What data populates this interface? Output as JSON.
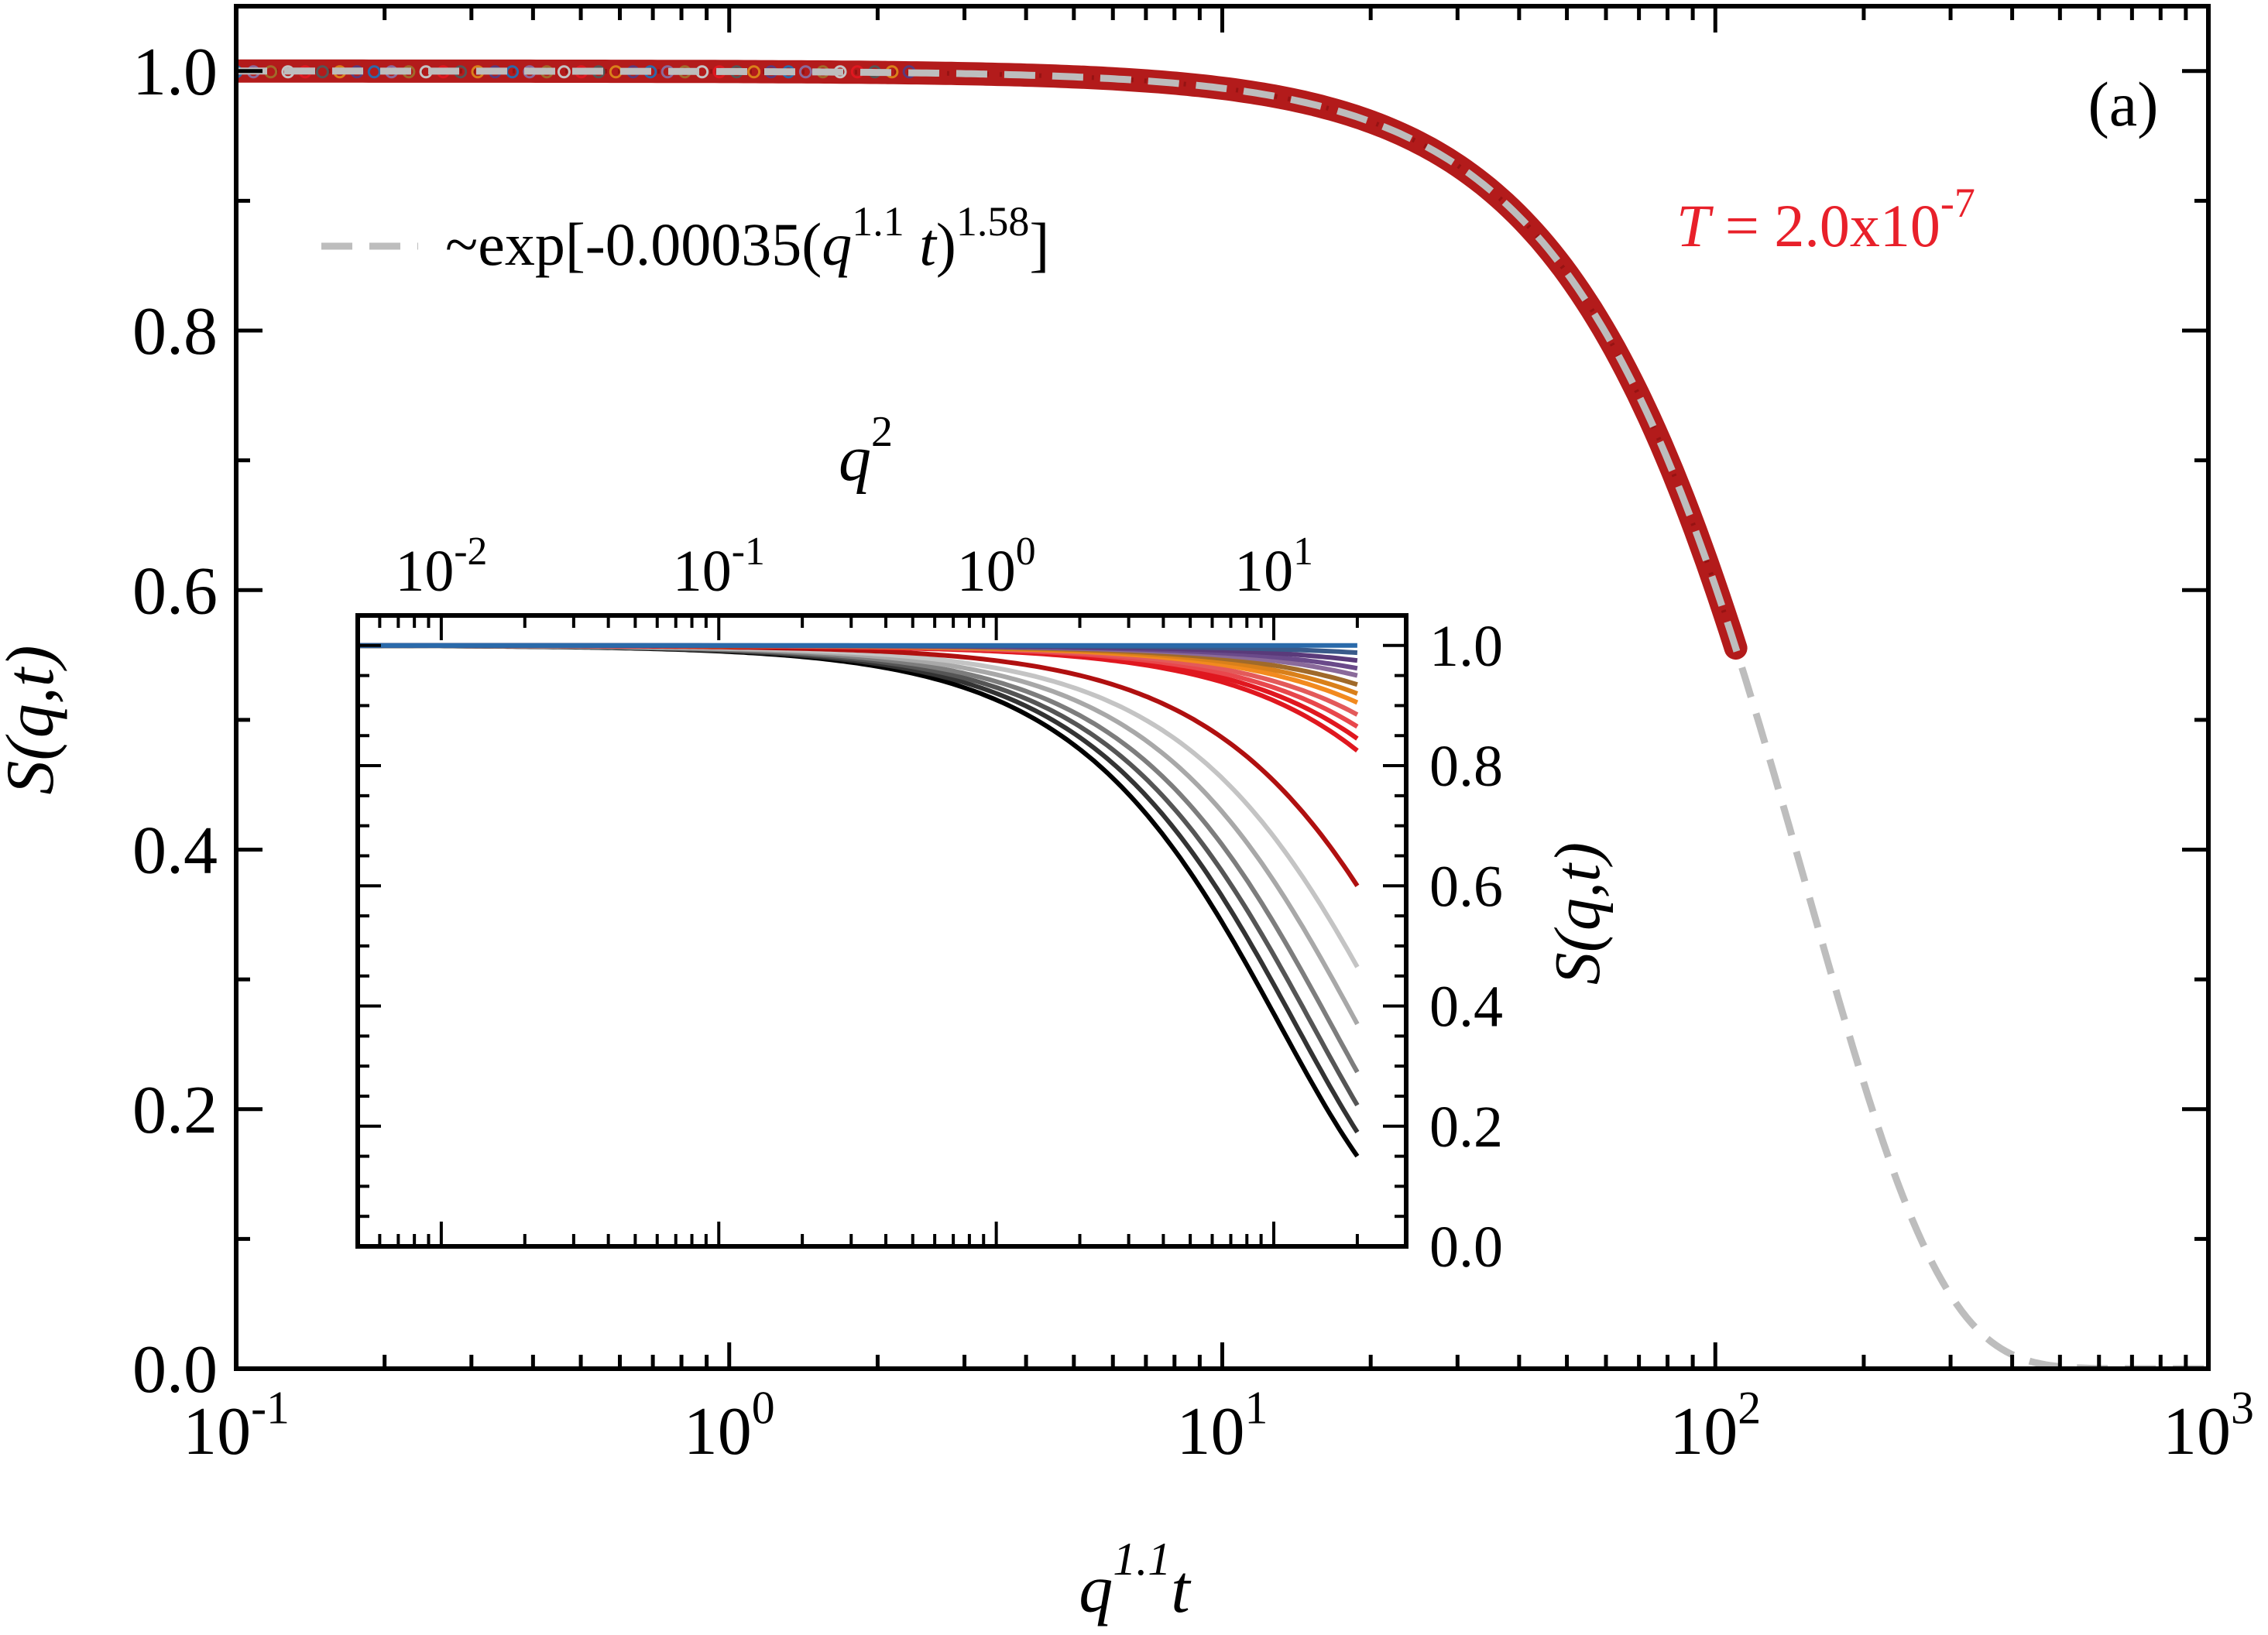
{
  "chart_data": [
    {
      "type": "scatter",
      "panel_label": "(a)",
      "xscale": "log",
      "xlim": [
        0.1,
        1000
      ],
      "ylim": [
        0.0,
        1.05
      ],
      "xticks": [
        {
          "value": 0.1,
          "base": "10",
          "exp": "-1"
        },
        {
          "value": 1,
          "base": "10",
          "exp": "0"
        },
        {
          "value": 10,
          "base": "10",
          "exp": "1"
        },
        {
          "value": 100,
          "base": "10",
          "exp": "2"
        },
        {
          "value": 1000,
          "base": "10",
          "exp": "3"
        }
      ],
      "yticks": [
        {
          "value": 0.0,
          "label": "0.0"
        },
        {
          "value": 0.2,
          "label": "0.2"
        },
        {
          "value": 0.4,
          "label": "0.4"
        },
        {
          "value": 0.6,
          "label": "0.6"
        },
        {
          "value": 0.8,
          "label": "0.8"
        },
        {
          "value": 1.0,
          "label": "1.0"
        }
      ],
      "xlabel": {
        "q": "q",
        "exp": "1.1",
        "t": "t"
      },
      "ylabel": "S(q,t)",
      "annotation": {
        "prefix": "T",
        "text": " = 2.0x10",
        "exp": "-7",
        "color": "#e8202a"
      },
      "legend": {
        "placement": "top-left",
        "prefix": "~exp[-0.00035(",
        "q": "q",
        "exp1": "1.1",
        "t": " t",
        "close": ")",
        "exp2": "1.58",
        "suffix": "]"
      },
      "fit": {
        "A": 0.00035,
        "beta": 1.58,
        "color": "#bdbdbd",
        "style": "dashed"
      },
      "collapsed_data": {
        "x_range": [
          0.1,
          110
        ],
        "color": "#b31b1b"
      }
    },
    {
      "type": "line",
      "role": "inset",
      "xscale": "log",
      "xlim": [
        0.005,
        30
      ],
      "ylim": [
        0.0,
        1.05
      ],
      "xticks": [
        {
          "value": 0.01,
          "base": "10",
          "exp": "-2"
        },
        {
          "value": 0.1,
          "base": "10",
          "exp": "-1"
        },
        {
          "value": 1,
          "base": "10",
          "exp": "0"
        },
        {
          "value": 10,
          "base": "10",
          "exp": "1"
        }
      ],
      "yticks": [
        {
          "value": 0.0,
          "label": "0.0"
        },
        {
          "value": 0.2,
          "label": "0.2"
        },
        {
          "value": 0.4,
          "label": "0.4"
        },
        {
          "value": 0.6,
          "label": "0.6"
        },
        {
          "value": 0.8,
          "label": "0.8"
        },
        {
          "value": 1.0,
          "label": "1.0"
        }
      ],
      "xlabel": {
        "q": "q",
        "exp": "2"
      },
      "ylabel": "S(q,t)",
      "x_max_data": 20,
      "series": [
        {
          "color": "#000000",
          "end_value": 0.15
        },
        {
          "color": "#333333",
          "end_value": 0.19
        },
        {
          "color": "#555555",
          "end_value": 0.235
        },
        {
          "color": "#7d7d7d",
          "end_value": 0.29
        },
        {
          "color": "#a8a8a8",
          "end_value": 0.37
        },
        {
          "color": "#c4c4c4",
          "end_value": 0.465
        },
        {
          "color": "#b01010",
          "end_value": 0.6
        },
        {
          "color": "#e0171f",
          "end_value": 0.825
        },
        {
          "color": "#e0171f",
          "end_value": 0.845
        },
        {
          "color": "#e8474c",
          "end_value": 0.865
        },
        {
          "color": "#e35a5a",
          "end_value": 0.885
        },
        {
          "color": "#f28a1e",
          "end_value": 0.905
        },
        {
          "color": "#d9801a",
          "end_value": 0.92
        },
        {
          "color": "#a06a2a",
          "end_value": 0.935
        },
        {
          "color": "#8a6a9a",
          "end_value": 0.95
        },
        {
          "color": "#6a4a8a",
          "end_value": 0.962
        },
        {
          "color": "#5a3a7a",
          "end_value": 0.975
        },
        {
          "color": "#3a5a8a",
          "end_value": 0.988
        },
        {
          "color": "#2a6aaa",
          "end_value": 1.0
        }
      ]
    }
  ]
}
